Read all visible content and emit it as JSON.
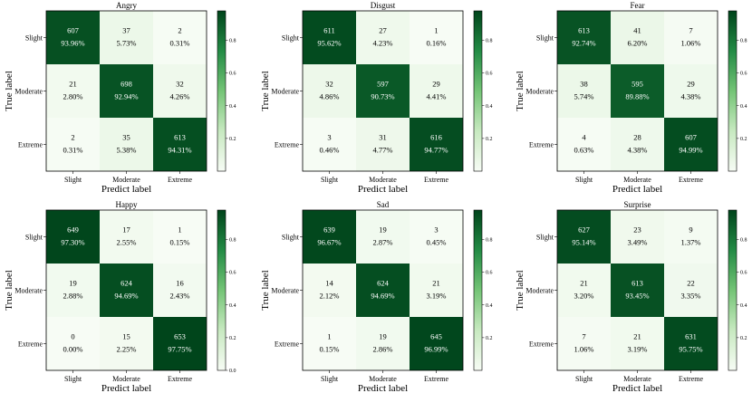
{
  "colormap": {
    "low": "#f7fcf5",
    "high": "#00441b",
    "name": "Greens"
  },
  "colorbar_ticks": [
    "0.0",
    "0.2",
    "0.4",
    "0.6",
    "0.8"
  ],
  "chart_data": [
    {
      "type": "heatmap",
      "title": "Angry",
      "xlabel": "Predict label",
      "ylabel": "True label",
      "categories": [
        "Slight",
        "Moderate",
        "Extreme"
      ],
      "counts": [
        [
          607,
          37,
          2
        ],
        [
          21,
          698,
          32
        ],
        [
          2,
          35,
          613
        ]
      ],
      "percents": [
        [
          "93.96%",
          "5.73%",
          "0.31%"
        ],
        [
          "2.80%",
          "92.94%",
          "4.26%"
        ],
        [
          "0.31%",
          "5.38%",
          "94.31%"
        ]
      ],
      "colorbar_ticks": [
        "0.2",
        "0.4",
        "0.6",
        "0.8"
      ]
    },
    {
      "type": "heatmap",
      "title": "Disgust",
      "xlabel": "Predict label",
      "ylabel": "True label",
      "categories": [
        "Slight",
        "Moderate",
        "Extreme"
      ],
      "counts": [
        [
          611,
          27,
          1
        ],
        [
          32,
          597,
          29
        ],
        [
          3,
          31,
          616
        ]
      ],
      "percents": [
        [
          "95.62%",
          "4.23%",
          "0.16%"
        ],
        [
          "4.86%",
          "90.73%",
          "4.41%"
        ],
        [
          "0.46%",
          "4.77%",
          "94.77%"
        ]
      ],
      "colorbar_ticks": [
        "0.2",
        "0.4",
        "0.6",
        "0.8"
      ]
    },
    {
      "type": "heatmap",
      "title": "Fear",
      "xlabel": "Predict label",
      "ylabel": "True label",
      "categories": [
        "Slight",
        "Moderate",
        "Extreme"
      ],
      "counts": [
        [
          613,
          41,
          7
        ],
        [
          38,
          595,
          29
        ],
        [
          4,
          28,
          607
        ]
      ],
      "percents": [
        [
          "92.74%",
          "6.20%",
          "1.06%"
        ],
        [
          "5.74%",
          "89.88%",
          "4.38%"
        ],
        [
          "0.63%",
          "4.38%",
          "94.99%"
        ]
      ],
      "colorbar_ticks": [
        "0.2",
        "0.4",
        "0.6",
        "0.8"
      ]
    },
    {
      "type": "heatmap",
      "title": "Happy",
      "xlabel": "Predict label",
      "ylabel": "True label",
      "categories": [
        "Slight",
        "Moderate",
        "Extreme"
      ],
      "counts": [
        [
          649,
          17,
          1
        ],
        [
          19,
          624,
          16
        ],
        [
          0,
          15,
          653
        ]
      ],
      "percents": [
        [
          "97.30%",
          "2.55%",
          "0.15%"
        ],
        [
          "2.88%",
          "94.69%",
          "2.43%"
        ],
        [
          "0.00%",
          "2.25%",
          "97.75%"
        ]
      ],
      "colorbar_ticks": [
        "0.0",
        "0.2",
        "0.4",
        "0.6",
        "0.8"
      ]
    },
    {
      "type": "heatmap",
      "title": "Sad",
      "xlabel": "Predict label",
      "ylabel": "True label",
      "categories": [
        "Slight",
        "Moderate",
        "Extreme"
      ],
      "counts": [
        [
          639,
          19,
          3
        ],
        [
          14,
          624,
          21
        ],
        [
          1,
          19,
          645
        ]
      ],
      "percents": [
        [
          "96.67%",
          "2.87%",
          "0.45%"
        ],
        [
          "2.12%",
          "94.69%",
          "3.19%"
        ],
        [
          "0.15%",
          "2.86%",
          "96.99%"
        ]
      ],
      "colorbar_ticks": [
        "0.2",
        "0.4",
        "0.6",
        "0.8"
      ]
    },
    {
      "type": "heatmap",
      "title": "Surprise",
      "xlabel": "Predict label",
      "ylabel": "True label",
      "categories": [
        "Slight",
        "Moderate",
        "Extreme"
      ],
      "counts": [
        [
          627,
          23,
          9
        ],
        [
          21,
          613,
          22
        ],
        [
          7,
          21,
          631
        ]
      ],
      "percents": [
        [
          "95.14%",
          "3.49%",
          "1.37%"
        ],
        [
          "3.20%",
          "93.45%",
          "3.35%"
        ],
        [
          "1.06%",
          "3.19%",
          "95.75%"
        ]
      ],
      "colorbar_ticks": [
        "0.2",
        "0.4",
        "0.6",
        "0.8"
      ]
    }
  ]
}
